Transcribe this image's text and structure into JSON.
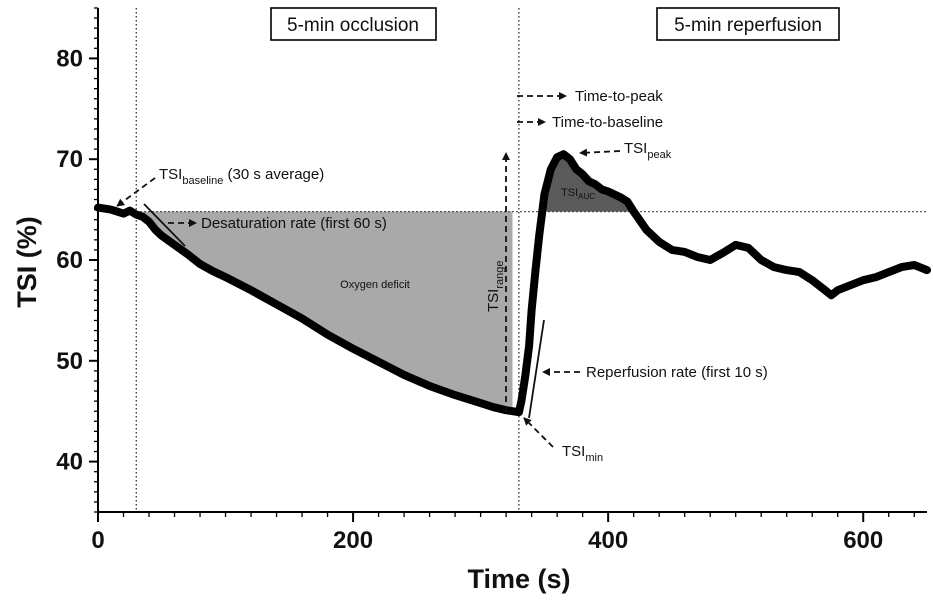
{
  "chart_data": {
    "type": "line",
    "xlabel": "Time (s)",
    "ylabel": "TSI (%)",
    "xlim": [
      0,
      650
    ],
    "ylim": [
      35,
      85
    ],
    "xticks": [
      0,
      200,
      400,
      600
    ],
    "yticks": [
      40,
      50,
      60,
      70,
      80
    ],
    "baseline": 64.8,
    "occlusion_start": 30,
    "reperfusion_start": 330,
    "phases": {
      "occlusion": "5-min occlusion",
      "reperfusion": "5-min reperfusion"
    },
    "series": [
      {
        "x": [
          0,
          10,
          20,
          25,
          30,
          35,
          40,
          45,
          50,
          60,
          70,
          80,
          90,
          100,
          120,
          140,
          160,
          180,
          200,
          220,
          240,
          260,
          280,
          300,
          310,
          320,
          325,
          330,
          332,
          335,
          338,
          340,
          343,
          346,
          350,
          355,
          360,
          365,
          370,
          375,
          380,
          385,
          390,
          395,
          400,
          405,
          410,
          415,
          420,
          430,
          440,
          450,
          460,
          470,
          480,
          490,
          500,
          510,
          520,
          530,
          540,
          550,
          560,
          570,
          575,
          580,
          590,
          600,
          610,
          620,
          630,
          640,
          650
        ],
        "y": [
          65.2,
          65.0,
          64.6,
          64.9,
          64.5,
          64.3,
          63.8,
          63.0,
          62.4,
          61.5,
          60.6,
          59.6,
          58.9,
          58.3,
          57.0,
          55.6,
          54.2,
          52.6,
          51.2,
          49.9,
          48.6,
          47.5,
          46.6,
          45.8,
          45.4,
          45.1,
          45.0,
          44.9,
          46.0,
          48.5,
          51.5,
          55.0,
          59.0,
          62.5,
          66.5,
          69.0,
          70.2,
          70.5,
          70.0,
          69.0,
          68.5,
          67.8,
          67.5,
          67.0,
          66.8,
          66.5,
          66.2,
          65.8,
          64.8,
          63.0,
          61.8,
          61.0,
          60.8,
          60.3,
          60.0,
          60.7,
          61.5,
          61.2,
          60.0,
          59.3,
          59.0,
          58.8,
          58.0,
          57.0,
          56.5,
          57.0,
          57.5,
          58.0,
          58.3,
          58.8,
          59.3,
          59.5,
          59.0
        ]
      }
    ],
    "regions": [
      {
        "label": "Oxygen deficit",
        "from": 35,
        "to": 325,
        "between": [
          "baseline",
          "series"
        ]
      },
      {
        "label_main": "TSI",
        "label_sub": "AUC",
        "from": 346,
        "to": 420,
        "between": [
          "series",
          "baseline"
        ]
      }
    ],
    "annotations": {
      "baseline": {
        "main": "TSI",
        "sub": "baseline",
        "rest": " (30 s average)"
      },
      "desaturation": "Desaturation rate (first 60 s)",
      "oxygen_deficit": "Oxygen deficit",
      "range": {
        "main": "TSI",
        "sub": "range"
      },
      "time_to_peak": "Time-to-peak",
      "time_to_baseline": "Time-to-baseline",
      "peak": {
        "main": "TSI",
        "sub": "peak"
      },
      "auc": {
        "main": "TSI",
        "sub": "AUC"
      },
      "reperfusion": "Reperfusion rate (first 10 s)",
      "min": {
        "main": "TSI",
        "sub": "min"
      }
    }
  }
}
